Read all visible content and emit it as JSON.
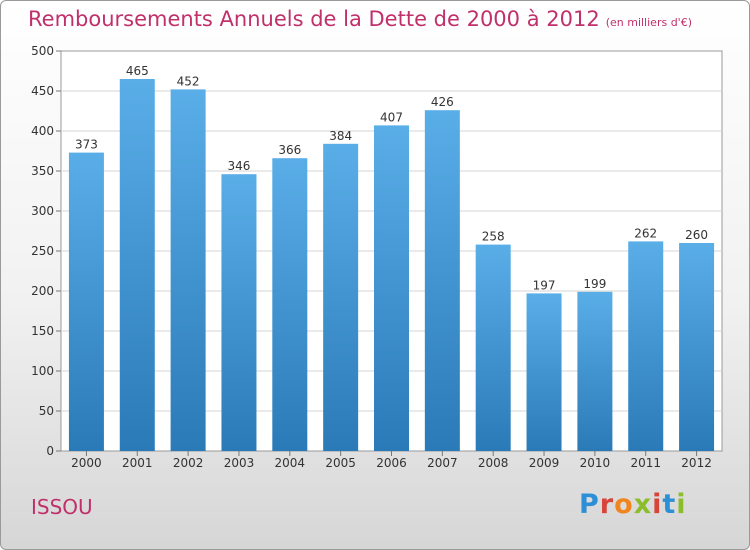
{
  "page": {
    "title": "Remboursements Annuels de la Dette de 2000 à 2012",
    "unit": "(en milliers d'€)",
    "city": "ISSOU",
    "logo": "Proxiti"
  },
  "colors": {
    "title": "#c0306a",
    "bar_top": "#5aaee8",
    "bar_bottom": "#2a7ab8"
  },
  "chart_data": {
    "type": "bar",
    "title": "Remboursements Annuels de la Dette de 2000 à 2012",
    "xlabel": "",
    "ylabel": "",
    "ylim": [
      0,
      500
    ],
    "yticks": [
      0,
      50,
      100,
      150,
      200,
      250,
      300,
      350,
      400,
      450,
      500
    ],
    "grid": true,
    "categories": [
      "2000",
      "2001",
      "2002",
      "2003",
      "2004",
      "2005",
      "2006",
      "2007",
      "2008",
      "2009",
      "2010",
      "2011",
      "2012"
    ],
    "values": [
      373,
      465,
      452,
      346,
      366,
      384,
      407,
      426,
      258,
      197,
      199,
      262,
      260
    ]
  }
}
